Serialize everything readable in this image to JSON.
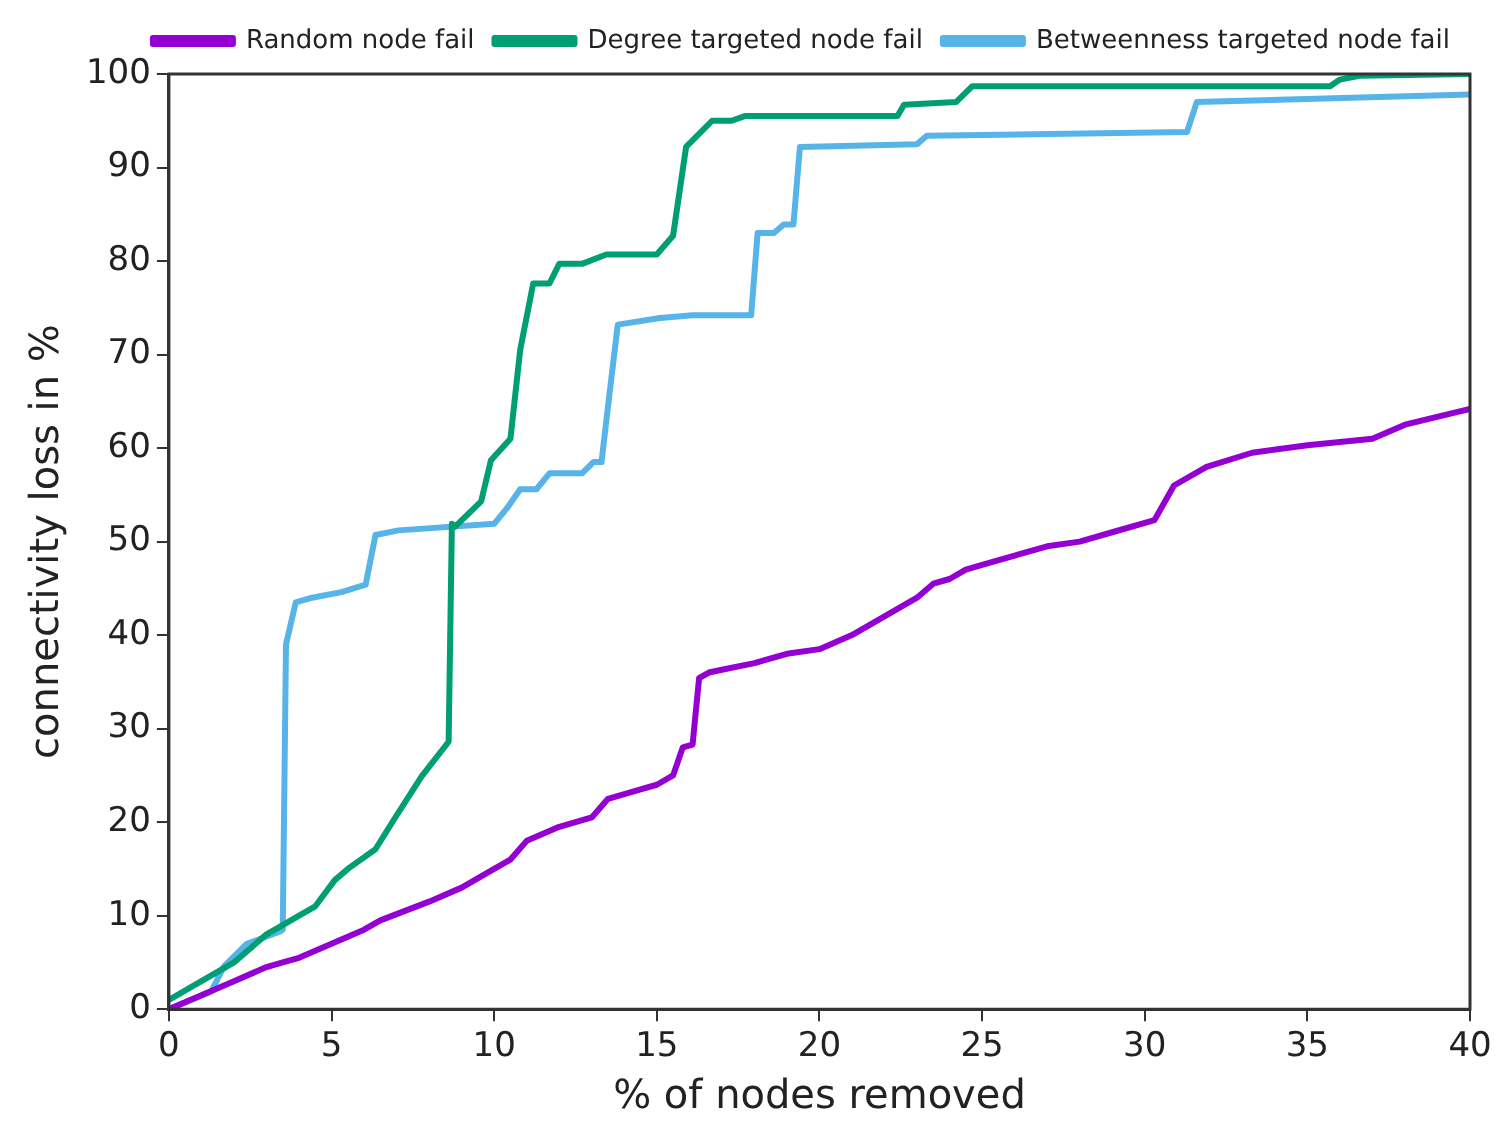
{
  "chart_data": {
    "type": "line",
    "xlabel": "% of nodes removed",
    "ylabel": "connectivity loss in %",
    "xlim": [
      0,
      40
    ],
    "xticks": [
      0,
      5,
      10,
      15,
      20,
      25,
      30,
      35,
      40
    ],
    "ylim": [
      0,
      100
    ],
    "yticks": [
      0,
      10,
      20,
      30,
      40,
      50,
      60,
      70,
      80,
      90,
      100
    ],
    "grid": false,
    "legend": "top right",
    "marker": "none",
    "line_style": "solid",
    "series": [
      {
        "name": "Random node fail",
        "color": "#9400d3",
        "x": [
          0,
          1,
          2,
          3,
          3.5,
          4,
          5,
          6,
          6.5,
          8,
          9,
          10,
          10.5,
          11,
          12,
          13,
          13.5,
          14.5,
          15,
          15.5,
          15.8,
          16.1,
          16.3,
          16.6,
          17,
          18,
          19,
          20,
          21,
          22,
          23,
          23.5,
          24,
          24.5,
          25,
          26,
          27,
          28,
          29,
          30.3,
          30.9,
          31.9,
          33.3,
          35,
          37,
          38,
          40
        ],
        "values": [
          0,
          1.5,
          3,
          4.5,
          5,
          5.5,
          7,
          8.5,
          9.5,
          11.5,
          13,
          15,
          16,
          18,
          19.5,
          20.5,
          22.5,
          23.5,
          24,
          25,
          28,
          28.3,
          35.4,
          36,
          36.3,
          37,
          38,
          38.5,
          40,
          42,
          44,
          45.5,
          46,
          47,
          47.5,
          48.5,
          49.5,
          50,
          51,
          52.3,
          56,
          58,
          59.5,
          60.3,
          61,
          62.5,
          64.2
        ]
      },
      {
        "name": "Degree targeted node fail",
        "color": "#009e73",
        "x": [
          0,
          1,
          2,
          2.5,
          3,
          3.5,
          4,
          4.5,
          5.1,
          5.5,
          6.35,
          6.96,
          7.77,
          8.6,
          8.7,
          8.8,
          9.6,
          9.9,
          10.5,
          10.8,
          11.2,
          11.7,
          12,
          12.7,
          13.45,
          15,
          15.5,
          15.9,
          16.7,
          17.3,
          17.7,
          22.4,
          22.6,
          24.2,
          24.7,
          35.7,
          36,
          36.6,
          40
        ],
        "values": [
          1,
          3,
          5,
          6.5,
          8,
          9,
          10,
          11,
          13.8,
          15,
          17.1,
          20.5,
          24.9,
          28.6,
          51.9,
          51.6,
          54.3,
          58.7,
          61,
          70.5,
          77.6,
          77.6,
          79.7,
          79.7,
          80.7,
          80.7,
          82.7,
          92.2,
          95,
          95,
          95.5,
          95.5,
          96.7,
          97,
          98.7,
          98.7,
          99.4,
          99.8,
          100
        ]
      },
      {
        "name": "Betweenness targeted node fail",
        "color": "#56b4e9",
        "x": [
          0,
          1.3,
          1.7,
          2.4,
          3.4,
          3.5,
          3.6,
          3.9,
          4.4,
          5.3,
          6.05,
          6.35,
          7.06,
          10,
          10.4,
          10.8,
          11.3,
          11.7,
          12.7,
          13.05,
          13.3,
          13.45,
          13.8,
          15.1,
          16.1,
          17.9,
          18.1,
          18.6,
          18.9,
          19.2,
          19.4,
          23,
          23.3,
          31.3,
          31.6,
          40
        ],
        "values": [
          0,
          1.9,
          4.6,
          7,
          8.3,
          8.5,
          39,
          43.5,
          44,
          44.6,
          45.4,
          50.7,
          51.2,
          51.9,
          53.6,
          55.6,
          55.6,
          57.3,
          57.3,
          58.5,
          58.5,
          63,
          73.2,
          73.9,
          74.2,
          74.2,
          83,
          83,
          83.9,
          83.9,
          92.2,
          92.5,
          93.4,
          93.8,
          97,
          97.8
        ]
      }
    ]
  }
}
